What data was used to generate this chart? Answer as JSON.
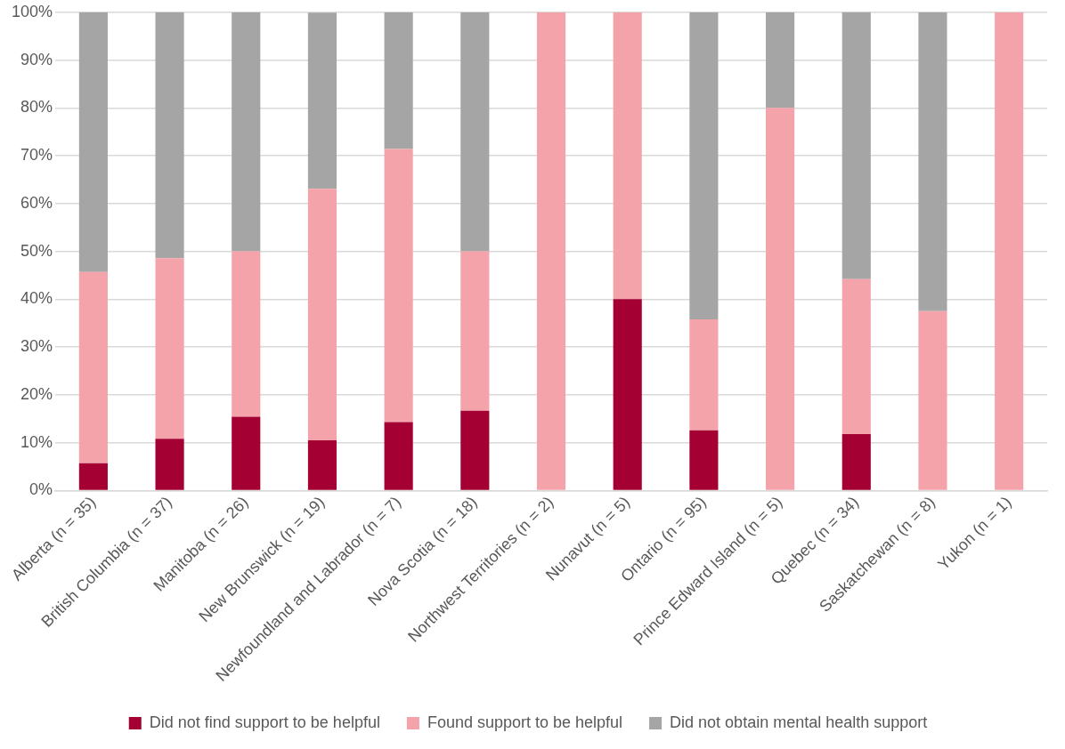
{
  "chart_data": {
    "type": "bar",
    "stacked": true,
    "categories": [
      "Alberta (n = 35)",
      "British Columbia (n = 37)",
      "Manitoba (n = 26)",
      "New Brunswick (n = 19)",
      "Newfoundland and Labrador (n = 7)",
      "Nova Scotia (n = 18)",
      "Northwest Territories (n = 2)",
      "Nunavut (n = 5)",
      "Ontario (n = 95)",
      "Prince Edward Island (n = 5)",
      "Quebec (n = 34)",
      "Saskatchewan (n = 8)",
      "Yukon (n = 1)"
    ],
    "series": [
      {
        "name": "Did not find support to be helpful",
        "color": "#a50034",
        "values": [
          5.7,
          10.8,
          15.4,
          10.5,
          14.3,
          16.7,
          0,
          40,
          12.6,
          0,
          11.8,
          0,
          0
        ]
      },
      {
        "name": "Found support to be helpful",
        "color": "#f4a3aa",
        "values": [
          40,
          37.8,
          34.6,
          52.6,
          57.1,
          33.3,
          100,
          60,
          23.2,
          80,
          32.4,
          37.5,
          100
        ]
      },
      {
        "name": "Did not obtain mental health support",
        "color": "#a5a5a5",
        "values": [
          54.3,
          51.4,
          50,
          36.8,
          28.6,
          50,
          0,
          0,
          64.2,
          20,
          55.9,
          62.5,
          0
        ]
      }
    ],
    "ylim": [
      0,
      100
    ],
    "yticks": [
      {
        "value": 0,
        "label": "0%"
      },
      {
        "value": 10,
        "label": "10%"
      },
      {
        "value": 20,
        "label": "20%"
      },
      {
        "value": 30,
        "label": "30%"
      },
      {
        "value": 40,
        "label": "40%"
      },
      {
        "value": 50,
        "label": "50%"
      },
      {
        "value": 60,
        "label": "60%"
      },
      {
        "value": 70,
        "label": "70%"
      },
      {
        "value": 80,
        "label": "80%"
      },
      {
        "value": 90,
        "label": "90%"
      },
      {
        "value": 100,
        "label": "100%"
      }
    ],
    "grid": "y",
    "legend": "bottom"
  }
}
